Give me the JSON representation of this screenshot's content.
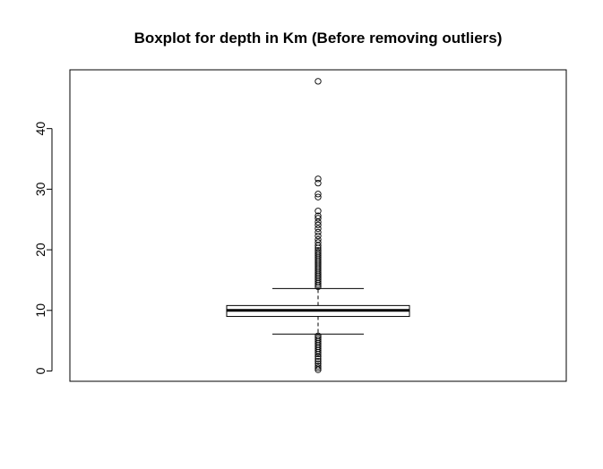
{
  "chart_data": {
    "type": "boxplot",
    "title": "Boxplot for depth in Km (Before removing outliers)",
    "xlabel": "",
    "ylabel": "",
    "ylim": [
      -1.7,
      49.7
    ],
    "yticks": [
      0,
      10,
      20,
      30,
      40
    ],
    "grid": false,
    "legend": "none",
    "box": {
      "lower_whisker": 6.1,
      "q1": 9.0,
      "median": 10.0,
      "q3": 10.8,
      "upper_whisker": 13.6
    },
    "outliers": [
      0.2,
      0.5,
      0.8,
      1.2,
      1.6,
      2.0,
      2.4,
      2.8,
      3.1,
      3.4,
      3.7,
      4.0,
      4.3,
      4.6,
      4.9,
      5.2,
      5.5,
      5.8,
      13.9,
      14.2,
      14.5,
      14.8,
      15.1,
      15.4,
      15.7,
      16.0,
      16.3,
      16.6,
      16.9,
      17.2,
      17.5,
      17.8,
      18.1,
      18.4,
      18.7,
      19.0,
      19.3,
      19.6,
      19.9,
      20.3,
      20.7,
      21.2,
      21.7,
      22.3,
      22.9,
      23.5,
      24.1,
      24.6,
      25.2,
      25.6,
      26.4,
      28.7,
      29.2,
      31.0,
      31.7,
      47.8
    ]
  }
}
